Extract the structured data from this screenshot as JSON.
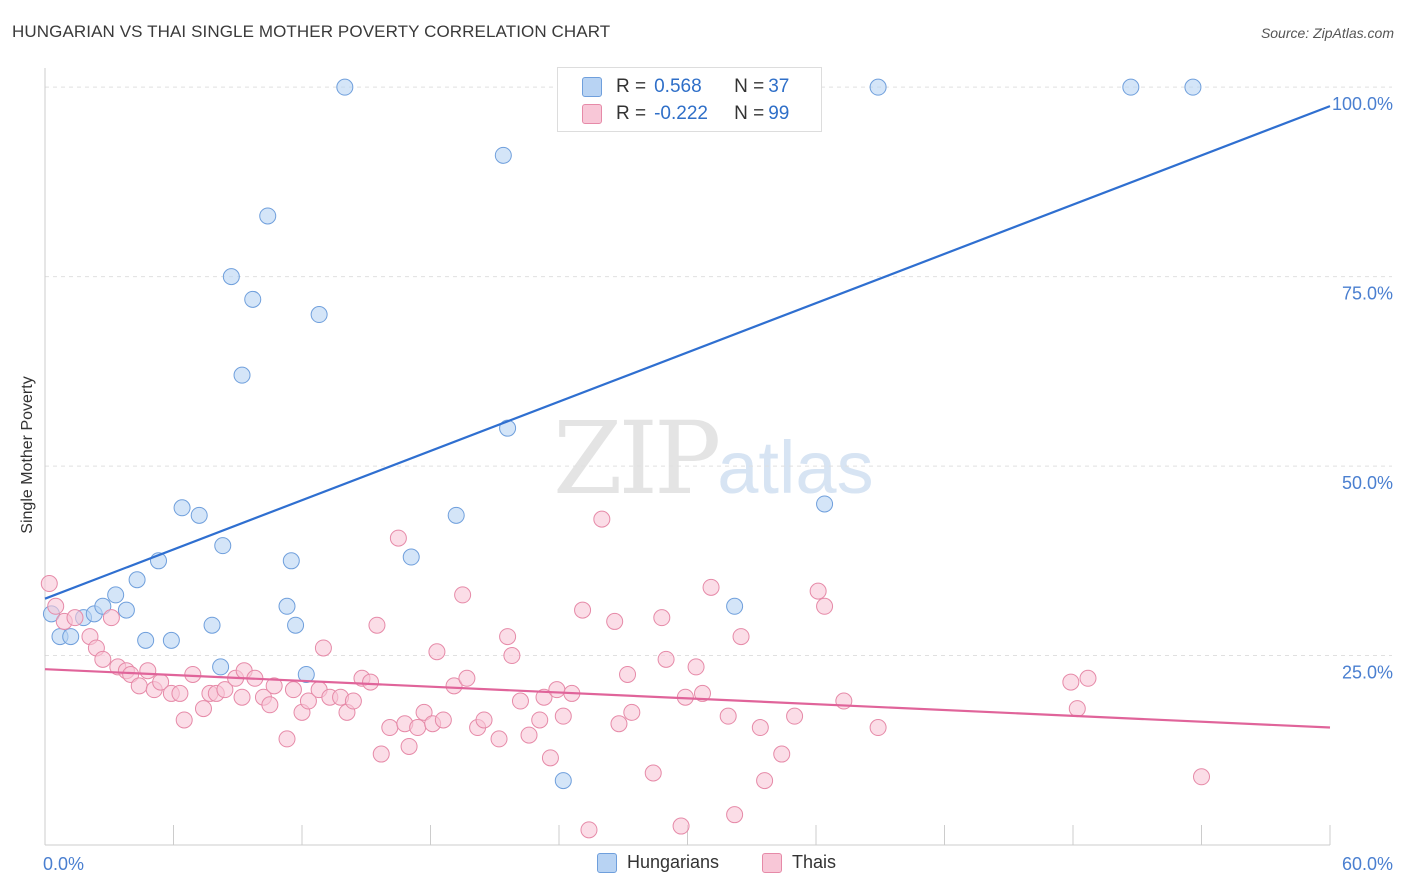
{
  "title": "HUNGARIAN VS THAI SINGLE MOTHER POVERTY CORRELATION CHART",
  "source": "Source: ZipAtlas.com",
  "watermark": {
    "zip": "ZIP",
    "atlas": "atlas"
  },
  "legend_top": [
    {
      "r_label": "R = ",
      "r_value": "0.568",
      "n_label": "N = ",
      "n_value": "37"
    },
    {
      "r_label": "R = ",
      "r_value": "-0.222",
      "n_label": "N = ",
      "n_value": "99"
    }
  ],
  "legend_bottom": [
    "Hungarians",
    "Thais"
  ],
  "colors": {
    "hungarian_fill": "#b8d3f3",
    "hungarian_stroke": "#6f9fdc",
    "hungarian_line": "#2f6fd0",
    "thai_fill": "#f8c7d7",
    "thai_stroke": "#e68aa8",
    "thai_line": "#e0649a",
    "axis_label": "#4a7fd0",
    "grid": "#e0e0e0"
  },
  "chart_data": {
    "type": "scatter",
    "title": "HUNGARIAN VS THAI SINGLE MOTHER POVERTY CORRELATION CHART",
    "xlabel": "",
    "ylabel": "Single Mother Poverty",
    "xlim": [
      0,
      60
    ],
    "ylim": [
      0,
      102
    ],
    "x_tick_labels": [
      {
        "value": 0,
        "label": "0.0%"
      },
      {
        "value": 60,
        "label": "60.0%"
      }
    ],
    "y_tick_labels": [
      {
        "value": 25,
        "label": "25.0%"
      },
      {
        "value": 50,
        "label": "50.0%"
      },
      {
        "value": 75,
        "label": "75.0%"
      },
      {
        "value": 100,
        "label": "100.0%"
      }
    ],
    "grid": true,
    "legend_position": "top-center",
    "series": [
      {
        "name": "Hungarians",
        "r": 0.568,
        "n": 37,
        "trend": {
          "x": [
            0,
            60
          ],
          "y": [
            32.5,
            97.5
          ]
        },
        "points": [
          [
            0.3,
            30.5
          ],
          [
            0.7,
            27.5
          ],
          [
            1.2,
            27.5
          ],
          [
            1.8,
            30
          ],
          [
            2.3,
            30.5
          ],
          [
            2.7,
            31.5
          ],
          [
            3.3,
            33
          ],
          [
            3.8,
            31
          ],
          [
            4.3,
            35
          ],
          [
            4.7,
            27
          ],
          [
            5.3,
            37.5
          ],
          [
            5.9,
            27
          ],
          [
            6.4,
            44.5
          ],
          [
            7.2,
            43.5
          ],
          [
            7.8,
            29
          ],
          [
            8.2,
            23.5
          ],
          [
            8.3,
            39.5
          ],
          [
            8.7,
            75
          ],
          [
            9.2,
            62
          ],
          [
            9.7,
            72
          ],
          [
            10.4,
            83
          ],
          [
            11.3,
            31.5
          ],
          [
            11.5,
            37.5
          ],
          [
            11.7,
            29
          ],
          [
            12.2,
            22.5
          ],
          [
            12.8,
            70
          ],
          [
            14,
            100
          ],
          [
            17.1,
            38
          ],
          [
            19.2,
            43.5
          ],
          [
            21.4,
            91
          ],
          [
            21.6,
            55
          ],
          [
            24.2,
            8.5
          ],
          [
            32.2,
            31.5
          ],
          [
            36.4,
            45
          ],
          [
            38.9,
            100
          ],
          [
            50.7,
            100
          ],
          [
            53.6,
            100
          ]
        ]
      },
      {
        "name": "Thais",
        "r": -0.222,
        "n": 99,
        "trend": {
          "x": [
            0,
            60
          ],
          "y": [
            23.2,
            15.5
          ]
        },
        "points": [
          [
            0.2,
            34.5
          ],
          [
            0.5,
            31.5
          ],
          [
            0.9,
            29.5
          ],
          [
            1.4,
            30
          ],
          [
            2.1,
            27.5
          ],
          [
            2.4,
            26
          ],
          [
            2.7,
            24.5
          ],
          [
            3.1,
            30
          ],
          [
            3.4,
            23.5
          ],
          [
            3.8,
            23
          ],
          [
            4.0,
            22.5
          ],
          [
            4.4,
            21
          ],
          [
            4.8,
            23
          ],
          [
            5.1,
            20.5
          ],
          [
            5.4,
            21.5
          ],
          [
            5.9,
            20
          ],
          [
            6.3,
            20
          ],
          [
            6.5,
            16.5
          ],
          [
            6.9,
            22.5
          ],
          [
            7.4,
            18
          ],
          [
            7.7,
            20
          ],
          [
            8.0,
            20
          ],
          [
            8.4,
            20.5
          ],
          [
            8.9,
            22
          ],
          [
            9.2,
            19.5
          ],
          [
            9.3,
            23
          ],
          [
            9.8,
            22
          ],
          [
            10.2,
            19.5
          ],
          [
            10.5,
            18.5
          ],
          [
            10.7,
            21
          ],
          [
            11.3,
            14
          ],
          [
            11.6,
            20.5
          ],
          [
            12.0,
            17.5
          ],
          [
            12.3,
            19
          ],
          [
            12.8,
            20.5
          ],
          [
            13.0,
            26
          ],
          [
            13.3,
            19.5
          ],
          [
            13.8,
            19.5
          ],
          [
            14.1,
            17.5
          ],
          [
            14.4,
            19
          ],
          [
            14.8,
            22
          ],
          [
            15.2,
            21.5
          ],
          [
            15.5,
            29
          ],
          [
            15.7,
            12
          ],
          [
            16.1,
            15.5
          ],
          [
            16.5,
            40.5
          ],
          [
            16.8,
            16
          ],
          [
            17.0,
            13
          ],
          [
            17.4,
            15.5
          ],
          [
            17.7,
            17.5
          ],
          [
            18.1,
            16
          ],
          [
            18.3,
            25.5
          ],
          [
            18.6,
            16.5
          ],
          [
            19.1,
            21
          ],
          [
            19.5,
            33
          ],
          [
            19.7,
            22
          ],
          [
            20.2,
            15.5
          ],
          [
            20.5,
            16.5
          ],
          [
            21.2,
            14
          ],
          [
            21.6,
            27.5
          ],
          [
            21.8,
            25
          ],
          [
            22.2,
            19
          ],
          [
            22.6,
            14.5
          ],
          [
            23.1,
            16.5
          ],
          [
            23.3,
            19.5
          ],
          [
            23.6,
            11.5
          ],
          [
            23.9,
            20.5
          ],
          [
            24.2,
            17
          ],
          [
            24.6,
            20
          ],
          [
            25.1,
            31
          ],
          [
            25.4,
            2
          ],
          [
            26.0,
            43
          ],
          [
            26.6,
            29.5
          ],
          [
            26.8,
            16
          ],
          [
            27.2,
            22.5
          ],
          [
            27.4,
            17.5
          ],
          [
            28.4,
            9.5
          ],
          [
            28.8,
            30
          ],
          [
            29.0,
            24.5
          ],
          [
            29.7,
            2.5
          ],
          [
            29.9,
            19.5
          ],
          [
            30.4,
            23.5
          ],
          [
            30.7,
            20
          ],
          [
            31.1,
            34
          ],
          [
            31.9,
            17
          ],
          [
            32.2,
            4
          ],
          [
            32.5,
            27.5
          ],
          [
            33.4,
            15.5
          ],
          [
            33.6,
            8.5
          ],
          [
            34.4,
            12
          ],
          [
            35.0,
            17
          ],
          [
            36.1,
            33.5
          ],
          [
            36.4,
            31.5
          ],
          [
            37.3,
            19
          ],
          [
            38.9,
            15.5
          ],
          [
            47.9,
            21.5
          ],
          [
            48.2,
            18
          ],
          [
            48.7,
            22
          ],
          [
            54.0,
            9
          ]
        ]
      }
    ]
  }
}
